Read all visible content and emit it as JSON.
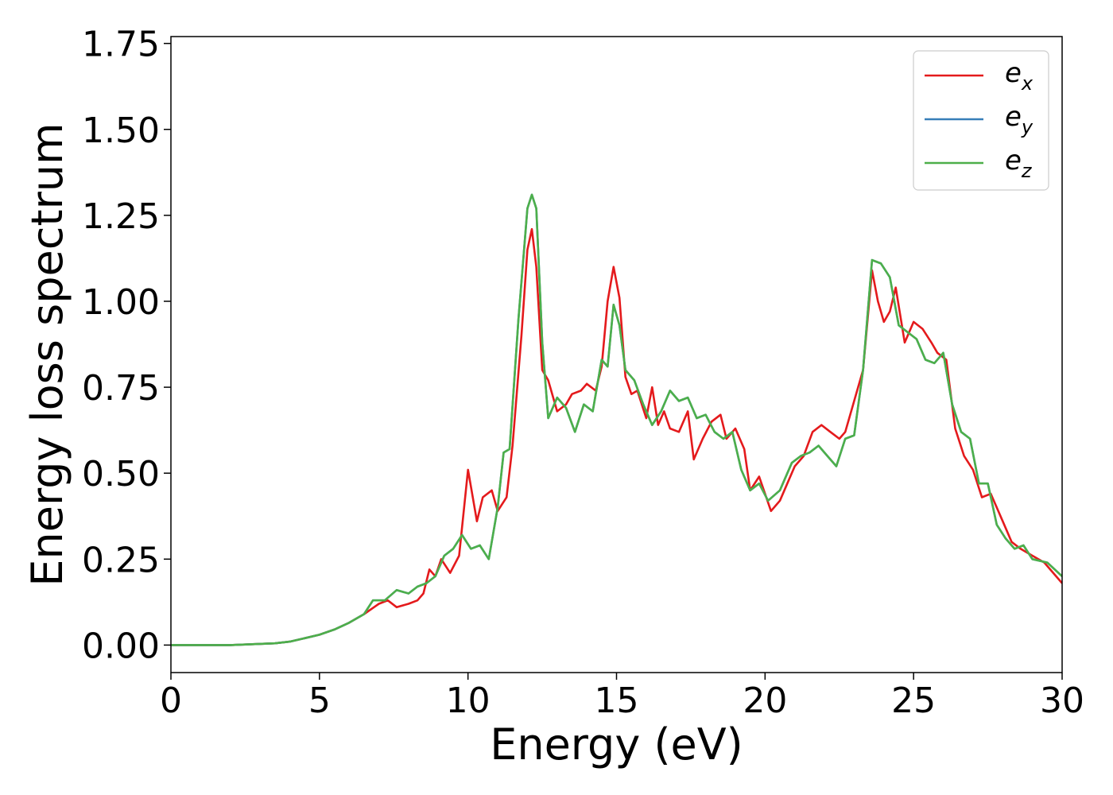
{
  "chart_data": {
    "type": "line",
    "title": "",
    "xlabel": "Energy (eV)",
    "ylabel": "Energy loss spectrum",
    "xlim": [
      0,
      30
    ],
    "ylim": [
      -0.08,
      1.77
    ],
    "xticks": [
      {
        "value": 0,
        "label": "0"
      },
      {
        "value": 5,
        "label": "5"
      },
      {
        "value": 10,
        "label": "10"
      },
      {
        "value": 15,
        "label": "15"
      },
      {
        "value": 20,
        "label": "20"
      },
      {
        "value": 25,
        "label": "25"
      },
      {
        "value": 30,
        "label": "30"
      }
    ],
    "yticks": [
      {
        "value": 0.0,
        "label": "0.00"
      },
      {
        "value": 0.25,
        "label": "0.25"
      },
      {
        "value": 0.5,
        "label": "0.50"
      },
      {
        "value": 0.75,
        "label": "0.75"
      },
      {
        "value": 1.0,
        "label": "1.00"
      },
      {
        "value": 1.25,
        "label": "1.25"
      },
      {
        "value": 1.5,
        "label": "1.50"
      },
      {
        "value": 1.75,
        "label": "1.75"
      }
    ],
    "grid": false,
    "legend": {
      "position": "top-right"
    },
    "series": [
      {
        "name": "e",
        "name_sub": "x",
        "color": "#e41a1c",
        "x": [
          0,
          2,
          3.5,
          4,
          4.5,
          5,
          5.5,
          6,
          6.5,
          7,
          7.3,
          7.6,
          8,
          8.3,
          8.5,
          8.7,
          8.9,
          9.1,
          9.4,
          9.7,
          10,
          10.3,
          10.5,
          10.8,
          11,
          11.3,
          11.5,
          11.8,
          12,
          12.15,
          12.3,
          12.5,
          12.7,
          13,
          13.3,
          13.5,
          13.8,
          14,
          14.3,
          14.5,
          14.7,
          14.9,
          15.1,
          15.3,
          15.5,
          15.7,
          16,
          16.2,
          16.4,
          16.6,
          16.8,
          17.1,
          17.4,
          17.6,
          17.9,
          18.2,
          18.5,
          18.7,
          19,
          19.3,
          19.5,
          19.8,
          20.2,
          20.5,
          20.8,
          21,
          21.3,
          21.6,
          21.9,
          22.2,
          22.5,
          22.7,
          23,
          23.3,
          23.6,
          23.8,
          24,
          24.2,
          24.4,
          24.7,
          25,
          25.3,
          25.6,
          25.8,
          26.1,
          26.4,
          26.7,
          27,
          27.3,
          27.6,
          28,
          28.3,
          28.6,
          29,
          29.4,
          29.7,
          30
        ],
        "y": [
          0.0,
          0.0,
          0.005,
          0.01,
          0.02,
          0.03,
          0.045,
          0.065,
          0.09,
          0.12,
          0.13,
          0.11,
          0.12,
          0.13,
          0.15,
          0.22,
          0.2,
          0.25,
          0.21,
          0.26,
          0.51,
          0.36,
          0.43,
          0.45,
          0.39,
          0.43,
          0.58,
          0.9,
          1.15,
          1.21,
          1.1,
          0.8,
          0.77,
          0.68,
          0.7,
          0.73,
          0.74,
          0.76,
          0.74,
          0.81,
          1.0,
          1.1,
          1.01,
          0.78,
          0.73,
          0.74,
          0.66,
          0.75,
          0.64,
          0.68,
          0.63,
          0.62,
          0.68,
          0.54,
          0.6,
          0.65,
          0.67,
          0.6,
          0.63,
          0.57,
          0.45,
          0.49,
          0.39,
          0.42,
          0.48,
          0.52,
          0.55,
          0.62,
          0.64,
          0.62,
          0.6,
          0.62,
          0.71,
          0.8,
          1.09,
          1.0,
          0.94,
          0.97,
          1.04,
          0.88,
          0.94,
          0.92,
          0.88,
          0.85,
          0.83,
          0.63,
          0.55,
          0.51,
          0.43,
          0.44,
          0.36,
          0.3,
          0.28,
          0.26,
          0.24,
          0.21,
          0.18
        ]
      },
      {
        "name": "e",
        "name_sub": "y",
        "color": "#377eb8",
        "x": [
          0,
          2,
          3.5,
          4,
          4.5,
          5,
          5.5,
          6,
          6.5,
          6.8,
          7.2,
          7.6,
          8,
          8.3,
          8.6,
          8.9,
          9.2,
          9.5,
          9.8,
          10.1,
          10.4,
          10.7,
          11,
          11.2,
          11.4,
          11.7,
          12,
          12.15,
          12.3,
          12.5,
          12.7,
          13,
          13.3,
          13.6,
          13.9,
          14.2,
          14.5,
          14.7,
          14.9,
          15.1,
          15.3,
          15.6,
          15.9,
          16.2,
          16.5,
          16.8,
          17.1,
          17.4,
          17.7,
          18,
          18.3,
          18.6,
          18.9,
          19.2,
          19.5,
          19.8,
          20.1,
          20.5,
          20.9,
          21.2,
          21.5,
          21.8,
          22.1,
          22.4,
          22.7,
          23,
          23.3,
          23.6,
          23.9,
          24.2,
          24.5,
          24.8,
          25.1,
          25.4,
          25.7,
          26,
          26.3,
          26.6,
          26.9,
          27.2,
          27.5,
          27.8,
          28.1,
          28.4,
          28.7,
          29,
          29.5,
          30
        ],
        "y": [
          0.0,
          0.0,
          0.005,
          0.01,
          0.02,
          0.03,
          0.045,
          0.065,
          0.09,
          0.13,
          0.13,
          0.16,
          0.15,
          0.17,
          0.18,
          0.2,
          0.26,
          0.28,
          0.32,
          0.28,
          0.29,
          0.25,
          0.4,
          0.56,
          0.57,
          0.95,
          1.27,
          1.31,
          1.27,
          0.88,
          0.66,
          0.72,
          0.69,
          0.62,
          0.7,
          0.68,
          0.83,
          0.81,
          0.99,
          0.93,
          0.8,
          0.77,
          0.7,
          0.64,
          0.68,
          0.74,
          0.71,
          0.72,
          0.66,
          0.67,
          0.62,
          0.6,
          0.62,
          0.51,
          0.45,
          0.47,
          0.42,
          0.45,
          0.53,
          0.55,
          0.56,
          0.58,
          0.55,
          0.52,
          0.6,
          0.61,
          0.8,
          1.12,
          1.11,
          1.07,
          0.93,
          0.91,
          0.89,
          0.83,
          0.82,
          0.85,
          0.7,
          0.62,
          0.6,
          0.47,
          0.47,
          0.35,
          0.31,
          0.28,
          0.29,
          0.25,
          0.24,
          0.2
        ]
      },
      {
        "name": "e",
        "name_sub": "z",
        "color": "#4daf4a",
        "x": [
          0,
          2,
          3.5,
          4,
          4.5,
          5,
          5.5,
          6,
          6.5,
          6.8,
          7.2,
          7.6,
          8,
          8.3,
          8.6,
          8.9,
          9.2,
          9.5,
          9.8,
          10.1,
          10.4,
          10.7,
          11,
          11.2,
          11.4,
          11.7,
          12,
          12.15,
          12.3,
          12.5,
          12.7,
          13,
          13.3,
          13.6,
          13.9,
          14.2,
          14.5,
          14.7,
          14.9,
          15.1,
          15.3,
          15.6,
          15.9,
          16.2,
          16.5,
          16.8,
          17.1,
          17.4,
          17.7,
          18,
          18.3,
          18.6,
          18.9,
          19.2,
          19.5,
          19.8,
          20.1,
          20.5,
          20.9,
          21.2,
          21.5,
          21.8,
          22.1,
          22.4,
          22.7,
          23,
          23.3,
          23.6,
          23.9,
          24.2,
          24.5,
          24.8,
          25.1,
          25.4,
          25.7,
          26,
          26.3,
          26.6,
          26.9,
          27.2,
          27.5,
          27.8,
          28.1,
          28.4,
          28.7,
          29,
          29.5,
          30
        ],
        "y": [
          0.0,
          0.0,
          0.005,
          0.01,
          0.02,
          0.03,
          0.045,
          0.065,
          0.09,
          0.13,
          0.13,
          0.16,
          0.15,
          0.17,
          0.18,
          0.2,
          0.26,
          0.28,
          0.32,
          0.28,
          0.29,
          0.25,
          0.4,
          0.56,
          0.57,
          0.95,
          1.27,
          1.31,
          1.27,
          0.88,
          0.66,
          0.72,
          0.69,
          0.62,
          0.7,
          0.68,
          0.83,
          0.81,
          0.99,
          0.93,
          0.8,
          0.77,
          0.7,
          0.64,
          0.68,
          0.74,
          0.71,
          0.72,
          0.66,
          0.67,
          0.62,
          0.6,
          0.62,
          0.51,
          0.45,
          0.47,
          0.42,
          0.45,
          0.53,
          0.55,
          0.56,
          0.58,
          0.55,
          0.52,
          0.6,
          0.61,
          0.8,
          1.12,
          1.11,
          1.07,
          0.93,
          0.91,
          0.89,
          0.83,
          0.82,
          0.85,
          0.7,
          0.62,
          0.6,
          0.47,
          0.47,
          0.35,
          0.31,
          0.28,
          0.29,
          0.25,
          0.24,
          0.2
        ]
      }
    ]
  }
}
